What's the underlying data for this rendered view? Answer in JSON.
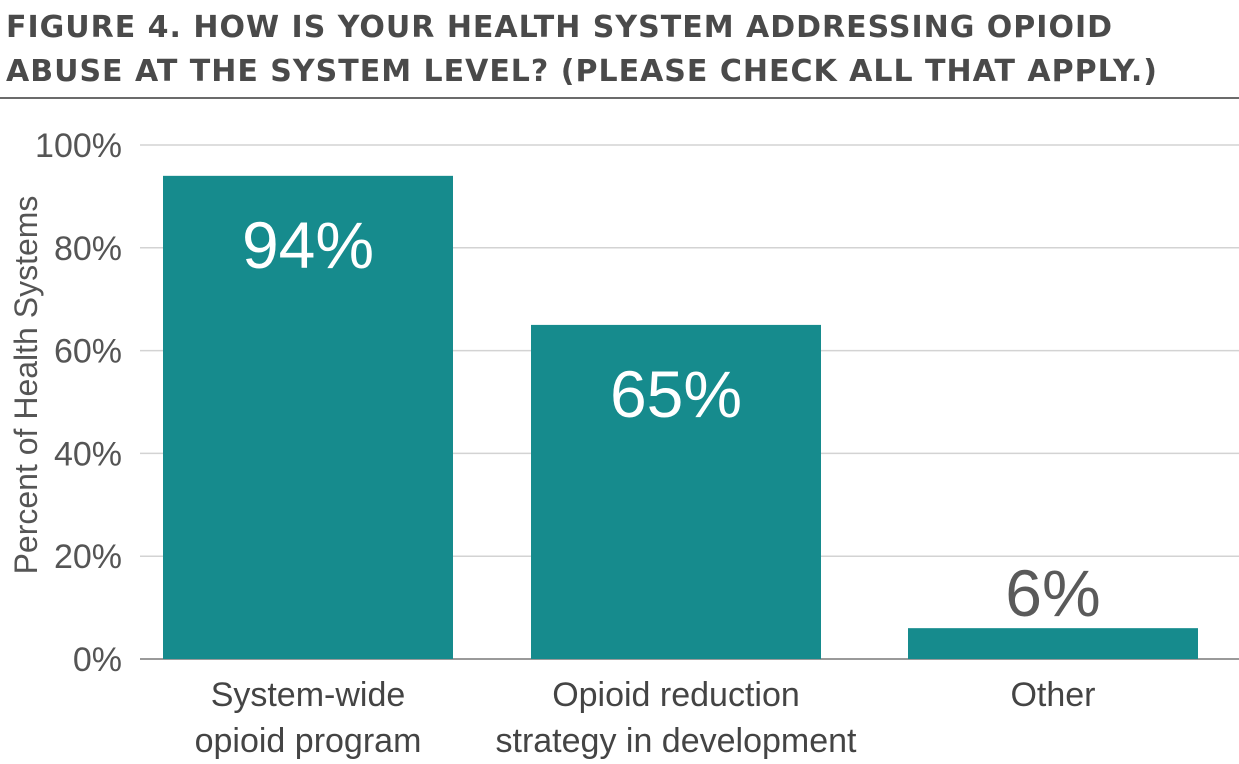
{
  "chart_data": {
    "type": "bar",
    "title": "FIGURE 4. HOW IS YOUR HEALTH SYSTEM ADDRESSING OPIOID ABUSE AT THE SYSTEM LEVEL? (PLEASE CHECK ALL THAT APPLY.)",
    "ylabel": "Percent of Health Systems",
    "xlabel": "",
    "categories": [
      [
        "System-wide",
        "opioid program"
      ],
      [
        "Opioid reduction",
        "strategy in development"
      ],
      [
        "Other"
      ]
    ],
    "values": [
      94,
      65,
      6
    ],
    "data_labels": [
      "94%",
      "65%",
      "6%"
    ],
    "ylim": [
      0,
      100
    ],
    "yticks": [
      0,
      20,
      40,
      60,
      80,
      100
    ],
    "ytick_labels": [
      "0%",
      "20%",
      "40%",
      "60%",
      "80%",
      "100%"
    ],
    "grid": true,
    "legend": "none",
    "colors": {
      "bar": "#168b8d",
      "grid": "#d3d3d3",
      "axis": "#9a9a9a"
    }
  }
}
